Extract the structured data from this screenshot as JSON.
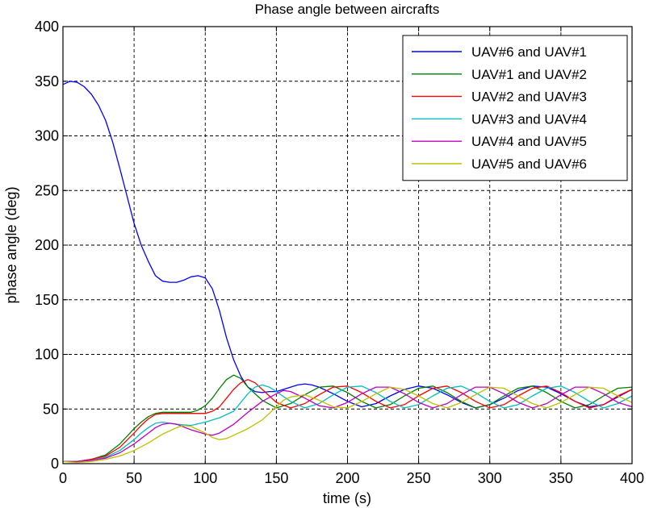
{
  "chart_data": {
    "type": "line",
    "title": "Phase angle between aircrafts",
    "xlabel": "time (s)",
    "ylabel": "phase angle (deg)",
    "xlim": [
      0,
      400
    ],
    "ylim": [
      0,
      400
    ],
    "xticks": [
      0,
      50,
      100,
      150,
      200,
      250,
      300,
      350,
      400
    ],
    "yticks": [
      0,
      50,
      100,
      150,
      200,
      250,
      300,
      350,
      400
    ],
    "grid": true,
    "legend_position": "top-right",
    "series": [
      {
        "name": "UAV#6 and UAV#1",
        "color": "#0000ff",
        "x": [
          0,
          5,
          10,
          15,
          20,
          25,
          30,
          35,
          40,
          45,
          50,
          55,
          60,
          65,
          70,
          75,
          80,
          85,
          90,
          95,
          100,
          105,
          110,
          115,
          120,
          125,
          130,
          135,
          140,
          145,
          150,
          155,
          160,
          165,
          170,
          175,
          180,
          190,
          200,
          210,
          220,
          230,
          240,
          250,
          260,
          270,
          280,
          290,
          300,
          310,
          320,
          330,
          340,
          350,
          360,
          370,
          380,
          390,
          400
        ],
        "y": [
          347,
          350,
          349,
          345,
          338,
          328,
          314,
          294,
          270,
          245,
          220,
          200,
          185,
          172,
          167,
          166,
          166,
          168,
          171,
          172,
          170,
          160,
          140,
          115,
          95,
          80,
          70,
          66,
          65,
          66,
          66,
          68,
          70,
          72,
          73,
          72,
          70,
          64,
          57,
          52,
          55,
          62,
          68,
          71,
          69,
          63,
          56,
          51,
          54,
          60,
          67,
          71,
          70,
          64,
          57,
          52,
          54,
          61,
          68
        ]
      },
      {
        "name": "UAV#1 and UAV#2",
        "color": "#008000",
        "x": [
          0,
          10,
          20,
          30,
          40,
          50,
          55,
          60,
          65,
          70,
          80,
          90,
          95,
          100,
          105,
          110,
          115,
          120,
          125,
          130,
          140,
          150,
          160,
          170,
          180,
          190,
          200,
          210,
          220,
          230,
          240,
          250,
          260,
          270,
          280,
          290,
          300,
          310,
          320,
          330,
          340,
          350,
          360,
          370,
          380,
          390,
          400
        ],
        "y": [
          2,
          2,
          4,
          8,
          18,
          32,
          38,
          43,
          46,
          47,
          47,
          47,
          49,
          53,
          60,
          69,
          77,
          81,
          78,
          70,
          58,
          51,
          55,
          63,
          70,
          71,
          65,
          57,
          51,
          54,
          62,
          69,
          71,
          65,
          57,
          51,
          54,
          62,
          69,
          71,
          65,
          57,
          51,
          54,
          62,
          69,
          70
        ]
      },
      {
        "name": "UAV#2 and UAV#3",
        "color": "#ff0000",
        "x": [
          0,
          10,
          20,
          30,
          40,
          50,
          55,
          60,
          65,
          70,
          80,
          90,
          100,
          105,
          110,
          115,
          120,
          125,
          130,
          135,
          140,
          150,
          160,
          170,
          180,
          190,
          200,
          210,
          220,
          230,
          240,
          250,
          260,
          270,
          280,
          290,
          300,
          310,
          320,
          330,
          340,
          350,
          360,
          370,
          380,
          390,
          400
        ],
        "y": [
          2,
          2,
          4,
          7,
          15,
          28,
          35,
          41,
          45,
          46,
          46,
          46,
          46,
          48,
          52,
          60,
          68,
          74,
          77,
          74,
          68,
          56,
          51,
          55,
          63,
          70,
          71,
          65,
          57,
          51,
          54,
          62,
          69,
          71,
          65,
          57,
          51,
          54,
          62,
          69,
          71,
          65,
          57,
          51,
          54,
          62,
          68
        ]
      },
      {
        "name": "UAV#3 and UAV#4",
        "color": "#00bfbf",
        "x": [
          0,
          10,
          20,
          30,
          40,
          50,
          55,
          60,
          65,
          70,
          80,
          90,
          100,
          110,
          120,
          125,
          130,
          135,
          140,
          145,
          150,
          160,
          170,
          180,
          190,
          200,
          210,
          220,
          230,
          240,
          250,
          260,
          270,
          280,
          290,
          300,
          310,
          320,
          330,
          340,
          350,
          360,
          370,
          380,
          390,
          400
        ],
        "y": [
          2,
          2,
          3,
          6,
          12,
          22,
          28,
          33,
          37,
          38,
          36,
          35,
          38,
          42,
          48,
          56,
          64,
          70,
          72,
          70,
          66,
          57,
          51,
          55,
          63,
          70,
          71,
          65,
          57,
          51,
          54,
          62,
          69,
          71,
          65,
          57,
          51,
          54,
          62,
          69,
          71,
          65,
          57,
          51,
          55,
          62
        ]
      },
      {
        "name": "UAV#4 and UAV#5",
        "color": "#bf00bf",
        "x": [
          0,
          10,
          20,
          30,
          40,
          50,
          55,
          60,
          65,
          70,
          75,
          80,
          90,
          100,
          105,
          110,
          120,
          130,
          140,
          150,
          155,
          160,
          170,
          180,
          190,
          200,
          210,
          220,
          230,
          240,
          250,
          260,
          270,
          280,
          290,
          300,
          310,
          320,
          330,
          340,
          350,
          360,
          370,
          380,
          390,
          400
        ],
        "y": [
          2,
          2,
          3,
          5,
          10,
          18,
          23,
          28,
          33,
          36,
          37,
          36,
          31,
          27,
          26,
          28,
          36,
          47,
          57,
          64,
          67,
          66,
          60,
          53,
          51,
          56,
          64,
          70,
          70,
          64,
          56,
          51,
          55,
          63,
          70,
          70,
          64,
          56,
          51,
          55,
          63,
          70,
          70,
          64,
          56,
          52
        ]
      },
      {
        "name": "UAV#5 and UAV#6",
        "color": "#bfbf00",
        "x": [
          0,
          10,
          20,
          30,
          40,
          50,
          60,
          70,
          80,
          85,
          90,
          100,
          105,
          110,
          115,
          120,
          130,
          140,
          150,
          155,
          160,
          170,
          180,
          190,
          200,
          210,
          220,
          230,
          240,
          250,
          260,
          270,
          280,
          290,
          300,
          310,
          320,
          330,
          340,
          350,
          360,
          370,
          380,
          390,
          400
        ],
        "y": [
          2,
          1,
          2,
          4,
          7,
          12,
          19,
          27,
          33,
          35,
          34,
          28,
          24,
          22,
          23,
          26,
          32,
          40,
          52,
          58,
          61,
          63,
          58,
          52,
          51,
          57,
          64,
          70,
          68,
          62,
          55,
          51,
          56,
          63,
          70,
          69,
          62,
          55,
          51,
          56,
          63,
          70,
          69,
          62,
          56
        ]
      }
    ]
  }
}
